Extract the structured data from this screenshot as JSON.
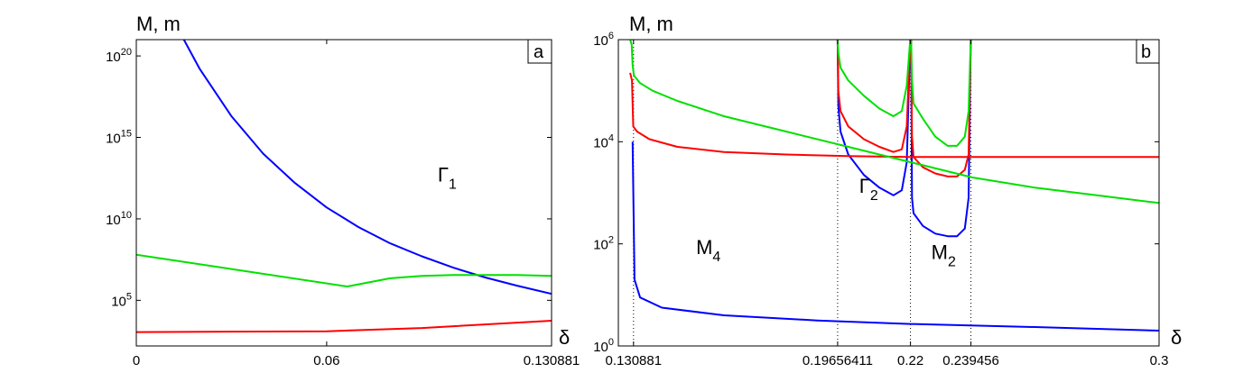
{
  "chart_data": [
    {
      "panel": "a",
      "type": "line",
      "ylabel": "M,  m",
      "xlabel": "δ",
      "xlim": [
        0,
        0.130881
      ],
      "ylog": true,
      "ylim_exp": [
        2.2,
        21
      ],
      "xticks": [
        {
          "value": 0,
          "label": "0"
        },
        {
          "value": 0.06,
          "label": "0.06"
        },
        {
          "value": 0.130881,
          "label": "0.130881"
        }
      ],
      "yticks": [
        {
          "value": 5,
          "base": "10",
          "exp": "5"
        },
        {
          "value": 10,
          "base": "10",
          "exp": "10"
        },
        {
          "value": 15,
          "base": "10",
          "exp": "15"
        },
        {
          "value": 20,
          "base": "10",
          "exp": "20"
        }
      ],
      "annotations": [
        {
          "x": 0.095,
          "y": 12.3,
          "text": "Γ",
          "sub": "1"
        }
      ],
      "series": [
        {
          "color": "#0000ff",
          "x": [
            0.015,
            0.02,
            0.03,
            0.04,
            0.05,
            0.06,
            0.07,
            0.08,
            0.09,
            0.1,
            0.11,
            0.12,
            0.130881
          ],
          "y": [
            21,
            19.2,
            16.3,
            14,
            12.2,
            10.7,
            9.5,
            8.5,
            7.7,
            7.0,
            6.4,
            5.9,
            5.4
          ]
        },
        {
          "color": "#00e000",
          "x": [
            0,
            0.0665,
            0.08,
            0.09,
            0.1,
            0.11,
            0.12,
            0.130881
          ],
          "y": [
            7.8,
            5.85,
            6.35,
            6.5,
            6.55,
            6.55,
            6.55,
            6.5
          ]
        },
        {
          "color": "#ff0000",
          "x": [
            0,
            0.06,
            0.09,
            0.130881
          ],
          "y": [
            3.05,
            3.1,
            3.3,
            3.75
          ]
        }
      ]
    },
    {
      "panel": "b",
      "type": "line",
      "ylabel": "M,  m",
      "xlabel": "δ",
      "xlim": [
        0.126,
        0.3
      ],
      "ylog": true,
      "ylim_exp": [
        0,
        6
      ],
      "xticks": [
        {
          "value": 0.130881,
          "label": "0.130881"
        },
        {
          "value": 0.19656411,
          "label": "0.19656411"
        },
        {
          "value": 0.22,
          "label": "0.22"
        },
        {
          "value": 0.239456,
          "label": "0.239456"
        },
        {
          "value": 0.3,
          "label": "0.3"
        }
      ],
      "yticks": [
        {
          "value": 0,
          "base": "10",
          "exp": "0"
        },
        {
          "value": 2,
          "base": "10",
          "exp": "2"
        },
        {
          "value": 4,
          "base": "10",
          "exp": "4"
        },
        {
          "value": 6,
          "base": "10",
          "exp": "6"
        }
      ],
      "vlines": [
        0.130881,
        0.19656411,
        0.22,
        0.239456
      ],
      "annotations": [
        {
          "x": 0.151,
          "y": 1.8,
          "text": "M",
          "sub": "4"
        },
        {
          "x": 0.2035,
          "y": 3.0,
          "text": "Γ",
          "sub": "2"
        },
        {
          "x": 0.2267,
          "y": 1.7,
          "text": "M",
          "sub": "2"
        }
      ],
      "series": [
        {
          "color": "#0000ff",
          "segments": [
            {
              "x": [
                0.1306,
                0.1312,
                0.133,
                0.14,
                0.16,
                0.19,
                0.22,
                0.26,
                0.3
              ],
              "y": [
                4.0,
                1.3,
                0.95,
                0.75,
                0.6,
                0.5,
                0.43,
                0.37,
                0.3
              ]
            },
            {
              "x": [
                0.19656,
                0.1968,
                0.1975,
                0.2,
                0.205,
                0.21,
                0.2145,
                0.2172,
                0.2188,
                0.2199
              ],
              "y": [
                6,
                4.7,
                4.2,
                3.75,
                3.35,
                3.1,
                2.95,
                3.05,
                3.6,
                6
              ]
            },
            {
              "x": [
                0.2202,
                0.2205,
                0.221,
                0.224,
                0.228,
                0.232,
                0.235,
                0.2375,
                0.2387,
                0.2394
              ],
              "y": [
                6,
                2.9,
                2.6,
                2.35,
                2.2,
                2.15,
                2.15,
                2.3,
                2.9,
                6
              ]
            }
          ]
        },
        {
          "color": "#ff0000",
          "segments": [
            {
              "x": [
                0.1298,
                0.1304,
                0.1308,
                0.132,
                0.136,
                0.145,
                0.16,
                0.18,
                0.2,
                0.22,
                0.24,
                0.26,
                0.28,
                0.3
              ],
              "y": [
                5.35,
                5.2,
                4.3,
                4.2,
                4.05,
                3.9,
                3.8,
                3.75,
                3.72,
                3.7,
                3.7,
                3.7,
                3.7,
                3.7
              ]
            },
            {
              "x": [
                0.19656,
                0.1968,
                0.1975,
                0.2,
                0.205,
                0.21,
                0.2145,
                0.2172,
                0.2188,
                0.2199
              ],
              "y": [
                6,
                5.0,
                4.6,
                4.3,
                4.05,
                3.9,
                3.8,
                3.85,
                4.3,
                6
              ]
            },
            {
              "x": [
                0.2202,
                0.2205,
                0.221,
                0.224,
                0.228,
                0.232,
                0.235,
                0.2375,
                0.2387,
                0.2394
              ],
              "y": [
                6,
                4.1,
                3.7,
                3.5,
                3.38,
                3.32,
                3.32,
                3.45,
                3.75,
                6
              ]
            }
          ]
        },
        {
          "color": "#00e000",
          "segments": [
            {
              "x": [
                0.1298,
                0.1303,
                0.1306,
                0.131,
                0.133,
                0.137,
                0.145,
                0.16,
                0.18,
                0.2,
                0.22,
                0.24,
                0.26,
                0.28,
                0.3
              ],
              "y": [
                6,
                5.9,
                5.5,
                5.3,
                5.15,
                5.0,
                4.8,
                4.5,
                4.2,
                3.9,
                3.6,
                3.3,
                3.1,
                2.95,
                2.8
              ]
            },
            {
              "x": [
                0.19656,
                0.1968,
                0.1975,
                0.2,
                0.205,
                0.21,
                0.2145,
                0.2172,
                0.2188,
                0.2199
              ],
              "y": [
                6,
                5.75,
                5.45,
                5.2,
                4.9,
                4.65,
                4.5,
                4.6,
                5.1,
                6
              ]
            },
            {
              "x": [
                0.2202,
                0.2205,
                0.221,
                0.224,
                0.228,
                0.232,
                0.235,
                0.2375,
                0.2387,
                0.2394
              ],
              "y": [
                6,
                5.2,
                4.75,
                4.45,
                4.1,
                3.92,
                3.92,
                4.1,
                4.6,
                6
              ]
            }
          ]
        }
      ]
    }
  ]
}
